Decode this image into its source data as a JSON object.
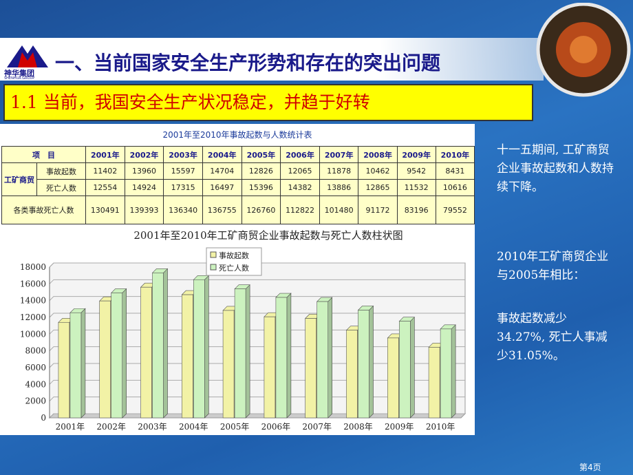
{
  "header": {
    "logo": "神华集团",
    "logo_sub": "SHENHUA GROUP",
    "title": "一、当前国家安全生产形势和存在的突出问题"
  },
  "subtitle": "1.1 当前，我国安全生产状况稳定，并趋于好转",
  "table": {
    "title": "2001年至2010年事故起数与人数统计表",
    "header": [
      "项　目",
      "2001年",
      "2002年",
      "2003年",
      "2004年",
      "2005年",
      "2006年",
      "2007年",
      "2008年",
      "2009年",
      "2010年"
    ],
    "group": "工矿商贸",
    "rows": [
      [
        "事故起数",
        "11402",
        "13960",
        "15597",
        "14704",
        "12826",
        "12065",
        "11878",
        "10462",
        "9542",
        "8431"
      ],
      [
        "死亡人数",
        "12554",
        "14924",
        "17315",
        "16497",
        "15396",
        "14382",
        "13886",
        "12865",
        "11532",
        "10616"
      ],
      [
        "各类事故死亡人数",
        "130491",
        "139393",
        "136340",
        "136755",
        "126760",
        "112822",
        "101480",
        "91172",
        "83196",
        "79552"
      ]
    ]
  },
  "chart_data": {
    "type": "bar",
    "title": "2001年至2010年工矿商贸企业事故起数与死亡人数柱状图",
    "categories": [
      "2001年",
      "2002年",
      "2003年",
      "2004年",
      "2005年",
      "2006年",
      "2007年",
      "2008年",
      "2009年",
      "2010年"
    ],
    "series": [
      {
        "name": "事故起数",
        "color": "#f2f2a6",
        "values": [
          11402,
          13960,
          15597,
          14704,
          12826,
          12065,
          11878,
          10462,
          9542,
          8431
        ]
      },
      {
        "name": "死亡人数",
        "color": "#ccf2bf",
        "values": [
          12554,
          14924,
          17315,
          16497,
          15396,
          14382,
          13886,
          12865,
          11532,
          10616
        ]
      }
    ],
    "ylim": [
      0,
      18000
    ],
    "yticks": [
      0,
      2000,
      4000,
      6000,
      8000,
      10000,
      12000,
      14000,
      16000,
      18000
    ],
    "grid": true,
    "legend": "top"
  },
  "side": [
    "十一五期间, 工矿商贸企业事故起数和人数持续下降。",
    "2010年工矿商贸企业与2005年相比：",
    "事故起数减少34.27%, 死亡人事减少31.05%。"
  ],
  "footer": "第4页"
}
